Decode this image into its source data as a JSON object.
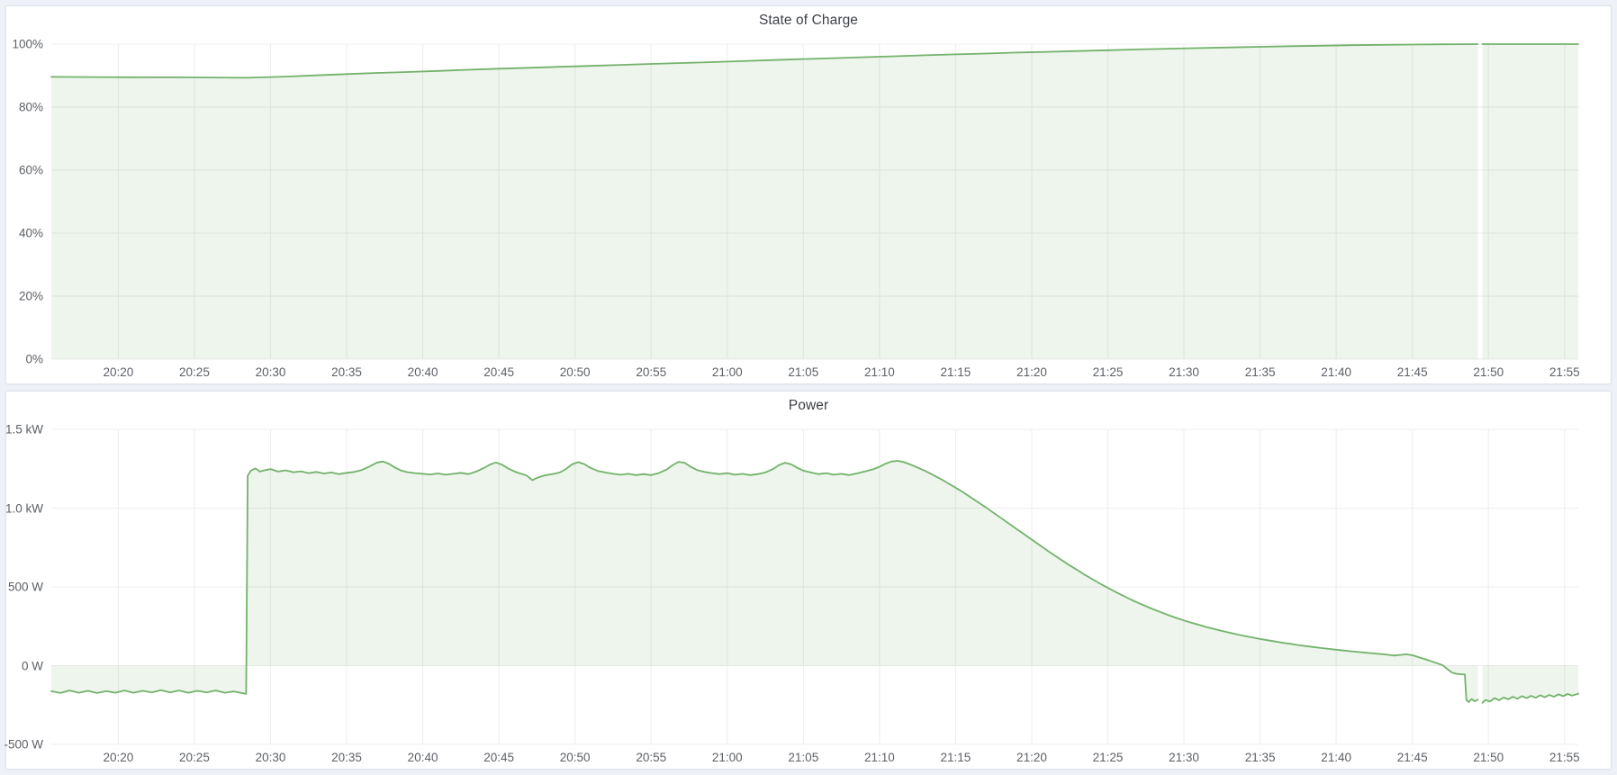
{
  "page": {
    "background": "#eef1f7",
    "panel_background": "#ffffff",
    "accent_green": "#73b26b"
  },
  "chart_data": [
    {
      "type": "area",
      "title": "State of Charge",
      "ylabel": "",
      "xlabel": "",
      "unit": "percent",
      "line_color": "#73b26b",
      "fill_color": "rgba(115,178,107,0.13)",
      "x_range": [
        15.6,
        115.9
      ],
      "y_range": [
        0,
        100
      ],
      "grid": "on",
      "legend": "none",
      "y_ticks": [
        {
          "value": 0,
          "label": "0%"
        },
        {
          "value": 20,
          "label": "20%"
        },
        {
          "value": 40,
          "label": "40%"
        },
        {
          "value": 60,
          "label": "60%"
        },
        {
          "value": 80,
          "label": "80%"
        },
        {
          "value": 100,
          "label": "100%"
        }
      ],
      "x_ticks": [
        {
          "minutes": 20,
          "label": "20:20"
        },
        {
          "minutes": 25,
          "label": "20:25"
        },
        {
          "minutes": 30,
          "label": "20:30"
        },
        {
          "minutes": 35,
          "label": "20:35"
        },
        {
          "minutes": 40,
          "label": "20:40"
        },
        {
          "minutes": 45,
          "label": "20:45"
        },
        {
          "minutes": 50,
          "label": "20:50"
        },
        {
          "minutes": 55,
          "label": "20:55"
        },
        {
          "minutes": 60,
          "label": "21:00"
        },
        {
          "minutes": 65,
          "label": "21:05"
        },
        {
          "minutes": 70,
          "label": "21:10"
        },
        {
          "minutes": 75,
          "label": "21:15"
        },
        {
          "minutes": 80,
          "label": "21:20"
        },
        {
          "minutes": 85,
          "label": "21:25"
        },
        {
          "minutes": 90,
          "label": "21:30"
        },
        {
          "minutes": 95,
          "label": "21:35"
        },
        {
          "minutes": 100,
          "label": "21:40"
        },
        {
          "minutes": 105,
          "label": "21:45"
        },
        {
          "minutes": 110,
          "label": "21:50"
        },
        {
          "minutes": 115,
          "label": "21:55"
        }
      ],
      "points": [
        [
          15.6,
          89.6
        ],
        [
          18,
          89.55
        ],
        [
          20,
          89.5
        ],
        [
          22,
          89.45
        ],
        [
          24,
          89.45
        ],
        [
          26,
          89.4
        ],
        [
          27.5,
          89.35
        ],
        [
          28.5,
          89.3
        ],
        [
          29.5,
          89.45
        ],
        [
          31,
          89.7
        ],
        [
          33,
          90.1
        ],
        [
          35,
          90.5
        ],
        [
          37,
          90.85
        ],
        [
          39,
          91.15
        ],
        [
          41,
          91.5
        ],
        [
          43,
          91.85
        ],
        [
          45,
          92.2
        ],
        [
          47,
          92.5
        ],
        [
          49,
          92.8
        ],
        [
          51,
          93.1
        ],
        [
          53,
          93.4
        ],
        [
          55,
          93.7
        ],
        [
          57,
          94.0
        ],
        [
          59,
          94.3
        ],
        [
          61,
          94.6
        ],
        [
          63,
          94.95
        ],
        [
          65,
          95.25
        ],
        [
          67,
          95.55
        ],
        [
          69,
          95.85
        ],
        [
          71,
          96.15
        ],
        [
          73,
          96.45
        ],
        [
          75,
          96.75
        ],
        [
          77,
          97.0
        ],
        [
          79,
          97.3
        ],
        [
          81,
          97.55
        ],
        [
          83,
          97.8
        ],
        [
          85,
          98.05
        ],
        [
          87,
          98.3
        ],
        [
          89,
          98.55
        ],
        [
          91,
          98.75
        ],
        [
          93,
          98.95
        ],
        [
          95,
          99.15
        ],
        [
          97,
          99.35
        ],
        [
          99,
          99.5
        ],
        [
          101,
          99.65
        ],
        [
          103,
          99.78
        ],
        [
          105,
          99.87
        ],
        [
          107,
          99.94
        ],
        [
          108.5,
          99.98
        ],
        [
          109.3,
          100
        ],
        [
          109.45,
          null
        ],
        [
          109.6,
          100
        ],
        [
          111,
          100
        ],
        [
          113,
          100
        ],
        [
          115.9,
          100
        ]
      ]
    },
    {
      "type": "area",
      "title": "Power",
      "ylabel": "",
      "xlabel": "",
      "unit": "watt",
      "line_color": "#73b26b",
      "fill_color": "rgba(115,178,107,0.13)",
      "x_range": [
        15.6,
        115.9
      ],
      "y_range": [
        -500,
        1500
      ],
      "grid": "on",
      "legend": "none",
      "y_ticks": [
        {
          "value": -500,
          "label": "-500 W"
        },
        {
          "value": 0,
          "label": "0 W"
        },
        {
          "value": 500,
          "label": "500 W"
        },
        {
          "value": 1000,
          "label": "1.0 kW"
        },
        {
          "value": 1500,
          "label": "1.5 kW"
        }
      ],
      "x_ticks": [
        {
          "minutes": 20,
          "label": "20:20"
        },
        {
          "minutes": 25,
          "label": "20:25"
        },
        {
          "minutes": 30,
          "label": "20:30"
        },
        {
          "minutes": 35,
          "label": "20:35"
        },
        {
          "minutes": 40,
          "label": "20:40"
        },
        {
          "minutes": 45,
          "label": "20:45"
        },
        {
          "minutes": 50,
          "label": "20:50"
        },
        {
          "minutes": 55,
          "label": "20:55"
        },
        {
          "minutes": 60,
          "label": "21:00"
        },
        {
          "minutes": 65,
          "label": "21:05"
        },
        {
          "minutes": 70,
          "label": "21:10"
        },
        {
          "minutes": 75,
          "label": "21:15"
        },
        {
          "minutes": 80,
          "label": "21:20"
        },
        {
          "minutes": 85,
          "label": "21:25"
        },
        {
          "minutes": 90,
          "label": "21:30"
        },
        {
          "minutes": 95,
          "label": "21:35"
        },
        {
          "minutes": 100,
          "label": "21:40"
        },
        {
          "minutes": 105,
          "label": "21:45"
        },
        {
          "minutes": 110,
          "label": "21:50"
        },
        {
          "minutes": 115,
          "label": "21:55"
        }
      ],
      "points": [
        [
          15.6,
          -162
        ],
        [
          16.2,
          -174
        ],
        [
          16.8,
          -158
        ],
        [
          17.4,
          -172
        ],
        [
          18,
          -160
        ],
        [
          18.6,
          -174
        ],
        [
          19.2,
          -162
        ],
        [
          19.8,
          -172
        ],
        [
          20.4,
          -158
        ],
        [
          21,
          -172
        ],
        [
          21.6,
          -160
        ],
        [
          22.2,
          -170
        ],
        [
          22.8,
          -156
        ],
        [
          23.4,
          -170
        ],
        [
          24,
          -158
        ],
        [
          24.6,
          -172
        ],
        [
          25.2,
          -160
        ],
        [
          25.8,
          -170
        ],
        [
          26.4,
          -158
        ],
        [
          27,
          -172
        ],
        [
          27.6,
          -164
        ],
        [
          28.2,
          -176
        ],
        [
          28.4,
          -180
        ],
        [
          28.5,
          1205
        ],
        [
          28.7,
          1238
        ],
        [
          29,
          1252
        ],
        [
          29.3,
          1232
        ],
        [
          29.6,
          1240
        ],
        [
          30,
          1248
        ],
        [
          30.5,
          1232
        ],
        [
          31,
          1240
        ],
        [
          31.5,
          1228
        ],
        [
          32,
          1234
        ],
        [
          32.5,
          1222
        ],
        [
          33,
          1230
        ],
        [
          33.5,
          1220
        ],
        [
          34,
          1226
        ],
        [
          34.5,
          1216
        ],
        [
          35,
          1224
        ],
        [
          35.5,
          1230
        ],
        [
          36,
          1242
        ],
        [
          36.5,
          1264
        ],
        [
          37,
          1290
        ],
        [
          37.4,
          1296
        ],
        [
          37.8,
          1280
        ],
        [
          38.2,
          1256
        ],
        [
          38.6,
          1238
        ],
        [
          39,
          1228
        ],
        [
          39.5,
          1222
        ],
        [
          40,
          1218
        ],
        [
          40.5,
          1214
        ],
        [
          41,
          1220
        ],
        [
          41.5,
          1212
        ],
        [
          42,
          1218
        ],
        [
          42.5,
          1224
        ],
        [
          43,
          1216
        ],
        [
          43.5,
          1232
        ],
        [
          44,
          1254
        ],
        [
          44.4,
          1276
        ],
        [
          44.8,
          1290
        ],
        [
          45.2,
          1276
        ],
        [
          45.6,
          1252
        ],
        [
          46,
          1234
        ],
        [
          46.4,
          1220
        ],
        [
          46.8,
          1208
        ],
        [
          47.2,
          1178
        ],
        [
          47.5,
          1192
        ],
        [
          48,
          1208
        ],
        [
          48.5,
          1216
        ],
        [
          49,
          1226
        ],
        [
          49.4,
          1248
        ],
        [
          49.8,
          1278
        ],
        [
          50.2,
          1292
        ],
        [
          50.6,
          1280
        ],
        [
          51,
          1256
        ],
        [
          51.5,
          1236
        ],
        [
          52,
          1226
        ],
        [
          52.5,
          1218
        ],
        [
          53,
          1212
        ],
        [
          53.5,
          1218
        ],
        [
          54,
          1210
        ],
        [
          54.5,
          1216
        ],
        [
          55,
          1210
        ],
        [
          55.5,
          1222
        ],
        [
          56,
          1244
        ],
        [
          56.4,
          1272
        ],
        [
          56.8,
          1294
        ],
        [
          57.2,
          1288
        ],
        [
          57.6,
          1262
        ],
        [
          58,
          1242
        ],
        [
          58.5,
          1230
        ],
        [
          59,
          1222
        ],
        [
          59.5,
          1216
        ],
        [
          60,
          1222
        ],
        [
          60.5,
          1212
        ],
        [
          61,
          1218
        ],
        [
          61.5,
          1210
        ],
        [
          62,
          1216
        ],
        [
          62.5,
          1226
        ],
        [
          63,
          1248
        ],
        [
          63.4,
          1274
        ],
        [
          63.8,
          1288
        ],
        [
          64.2,
          1278
        ],
        [
          64.6,
          1256
        ],
        [
          65,
          1238
        ],
        [
          65.5,
          1226
        ],
        [
          66,
          1216
        ],
        [
          66.5,
          1222
        ],
        [
          67,
          1212
        ],
        [
          67.5,
          1218
        ],
        [
          68,
          1210
        ],
        [
          68.5,
          1220
        ],
        [
          69,
          1232
        ],
        [
          69.5,
          1244
        ],
        [
          70,
          1262
        ],
        [
          70.4,
          1282
        ],
        [
          70.8,
          1296
        ],
        [
          71.2,
          1300
        ],
        [
          71.6,
          1292
        ],
        [
          72,
          1278
        ],
        [
          72.5,
          1258
        ],
        [
          73,
          1236
        ],
        [
          73.5,
          1212
        ],
        [
          74,
          1186
        ],
        [
          74.5,
          1158
        ],
        [
          75,
          1130
        ],
        [
          75.5,
          1100
        ],
        [
          76,
          1068
        ],
        [
          76.5,
          1036
        ],
        [
          77,
          1004
        ],
        [
          77.5,
          970
        ],
        [
          78,
          936
        ],
        [
          78.5,
          902
        ],
        [
          79,
          868
        ],
        [
          79.5,
          834
        ],
        [
          80,
          800
        ],
        [
          80.5,
          766
        ],
        [
          81,
          732
        ],
        [
          81.5,
          700
        ],
        [
          82,
          668
        ],
        [
          82.5,
          636
        ],
        [
          83,
          606
        ],
        [
          83.5,
          576
        ],
        [
          84,
          548
        ],
        [
          84.5,
          520
        ],
        [
          85,
          494
        ],
        [
          85.5,
          468
        ],
        [
          86,
          444
        ],
        [
          86.5,
          420
        ],
        [
          87,
          398
        ],
        [
          87.5,
          377
        ],
        [
          88,
          357
        ],
        [
          88.5,
          338
        ],
        [
          89,
          320
        ],
        [
          89.5,
          303
        ],
        [
          90,
          287
        ],
        [
          90.5,
          272
        ],
        [
          91,
          258
        ],
        [
          91.5,
          244
        ],
        [
          92,
          232
        ],
        [
          92.5,
          220
        ],
        [
          93,
          209
        ],
        [
          93.5,
          198
        ],
        [
          94,
          188
        ],
        [
          94.5,
          178
        ],
        [
          95,
          169
        ],
        [
          95.5,
          161
        ],
        [
          96,
          153
        ],
        [
          96.5,
          145
        ],
        [
          97,
          138
        ],
        [
          97.5,
          131
        ],
        [
          98,
          124
        ],
        [
          98.5,
          118
        ],
        [
          99,
          112
        ],
        [
          99.5,
          106
        ],
        [
          100,
          101
        ],
        [
          100.5,
          96
        ],
        [
          101,
          91
        ],
        [
          101.5,
          86
        ],
        [
          102,
          82
        ],
        [
          102.5,
          77
        ],
        [
          103,
          73
        ],
        [
          103.4,
          69
        ],
        [
          103.8,
          64
        ],
        [
          104.2,
          68
        ],
        [
          104.6,
          72
        ],
        [
          105,
          66
        ],
        [
          105.4,
          54
        ],
        [
          105.8,
          42
        ],
        [
          106.2,
          30
        ],
        [
          106.6,
          16
        ],
        [
          107,
          2
        ],
        [
          107.3,
          -22
        ],
        [
          107.6,
          -44
        ],
        [
          107.9,
          -52
        ],
        [
          108.2,
          -55
        ],
        [
          108.45,
          -56
        ],
        [
          108.55,
          -218
        ],
        [
          108.7,
          -232
        ],
        [
          108.9,
          -212
        ],
        [
          109.1,
          -226
        ],
        [
          109.3,
          -216
        ],
        [
          109.45,
          null
        ],
        [
          109.6,
          -236
        ],
        [
          109.8,
          -218
        ],
        [
          110.1,
          -228
        ],
        [
          110.4,
          -206
        ],
        [
          110.7,
          -220
        ],
        [
          111,
          -202
        ],
        [
          111.3,
          -214
        ],
        [
          111.6,
          -198
        ],
        [
          111.9,
          -210
        ],
        [
          112.2,
          -194
        ],
        [
          112.5,
          -206
        ],
        [
          112.8,
          -192
        ],
        [
          113.1,
          -204
        ],
        [
          113.4,
          -188
        ],
        [
          113.7,
          -200
        ],
        [
          114,
          -186
        ],
        [
          114.3,
          -198
        ],
        [
          114.6,
          -182
        ],
        [
          114.9,
          -194
        ],
        [
          115.2,
          -180
        ],
        [
          115.5,
          -190
        ],
        [
          115.9,
          -178
        ]
      ]
    }
  ]
}
